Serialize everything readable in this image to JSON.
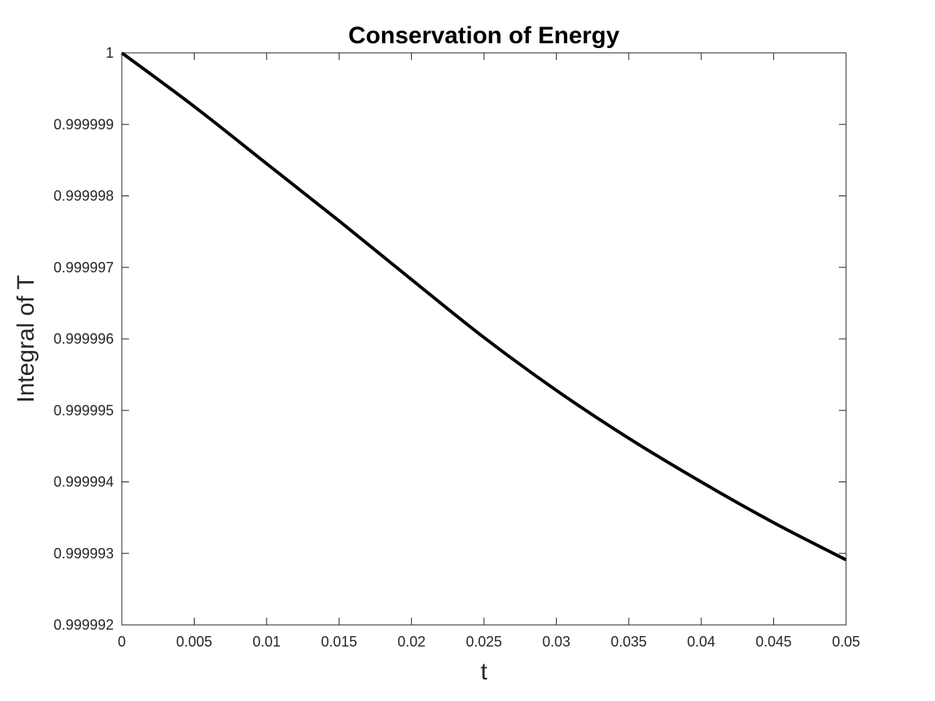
{
  "chart_data": {
    "type": "line",
    "title": "Conservation of Energy",
    "xlabel": "t",
    "ylabel": "Integral of T",
    "xlim": [
      0,
      0.05
    ],
    "ylim": [
      0.999992,
      1
    ],
    "x_ticks": [
      0,
      0.005,
      0.01,
      0.015,
      0.02,
      0.025,
      0.03,
      0.035,
      0.04,
      0.045,
      0.05
    ],
    "x_tick_labels": [
      "0",
      "0.005",
      "0.01",
      "0.015",
      "0.02",
      "0.025",
      "0.03",
      "0.035",
      "0.04",
      "0.045",
      "0.05"
    ],
    "y_ticks": [
      0.999992,
      0.999993,
      0.999994,
      0.999995,
      0.999996,
      0.999997,
      0.999998,
      0.999999,
      1
    ],
    "y_tick_labels": [
      "0.999992",
      "0.999993",
      "0.999994",
      "0.999995",
      "0.999996",
      "0.999997",
      "0.999998",
      "0.999999",
      "1"
    ],
    "grid": false,
    "series": [
      {
        "color": "#000000",
        "x": [
          0,
          0.005,
          0.01,
          0.015,
          0.02,
          0.025,
          0.03,
          0.035,
          0.04,
          0.045,
          0.05
        ],
        "y": [
          1.0,
          0.99999925,
          0.99999845,
          0.99999765,
          0.99999683,
          0.99999602,
          0.99999528,
          0.99999461,
          0.999994,
          0.99999343,
          0.99999291
        ]
      }
    ]
  }
}
